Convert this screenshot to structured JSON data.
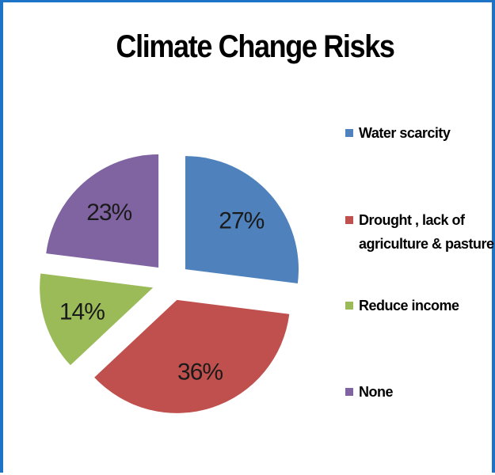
{
  "chart_data": {
    "type": "pie",
    "title": "Climate Change Risks",
    "categories": [
      "Water scarcity",
      "Drought , lack of agriculture & pasture",
      "Reduce income",
      "None"
    ],
    "values": [
      27,
      36,
      14,
      23
    ],
    "labels": [
      "27%",
      "36%",
      "14%",
      "23%"
    ],
    "colors": [
      "#4f81bd",
      "#c0504d",
      "#9bbb59",
      "#8064a2"
    ],
    "exploded": true,
    "legend_position": "right"
  },
  "legend": {
    "items": [
      {
        "label": "Water scarcity",
        "color": "#4f81bd"
      },
      {
        "label": "Drought , lack of agriculture & pasture",
        "color": "#c0504d"
      },
      {
        "label": "Reduce income",
        "color": "#9bbb59"
      },
      {
        "label": "None",
        "color": "#8064a2"
      }
    ]
  }
}
